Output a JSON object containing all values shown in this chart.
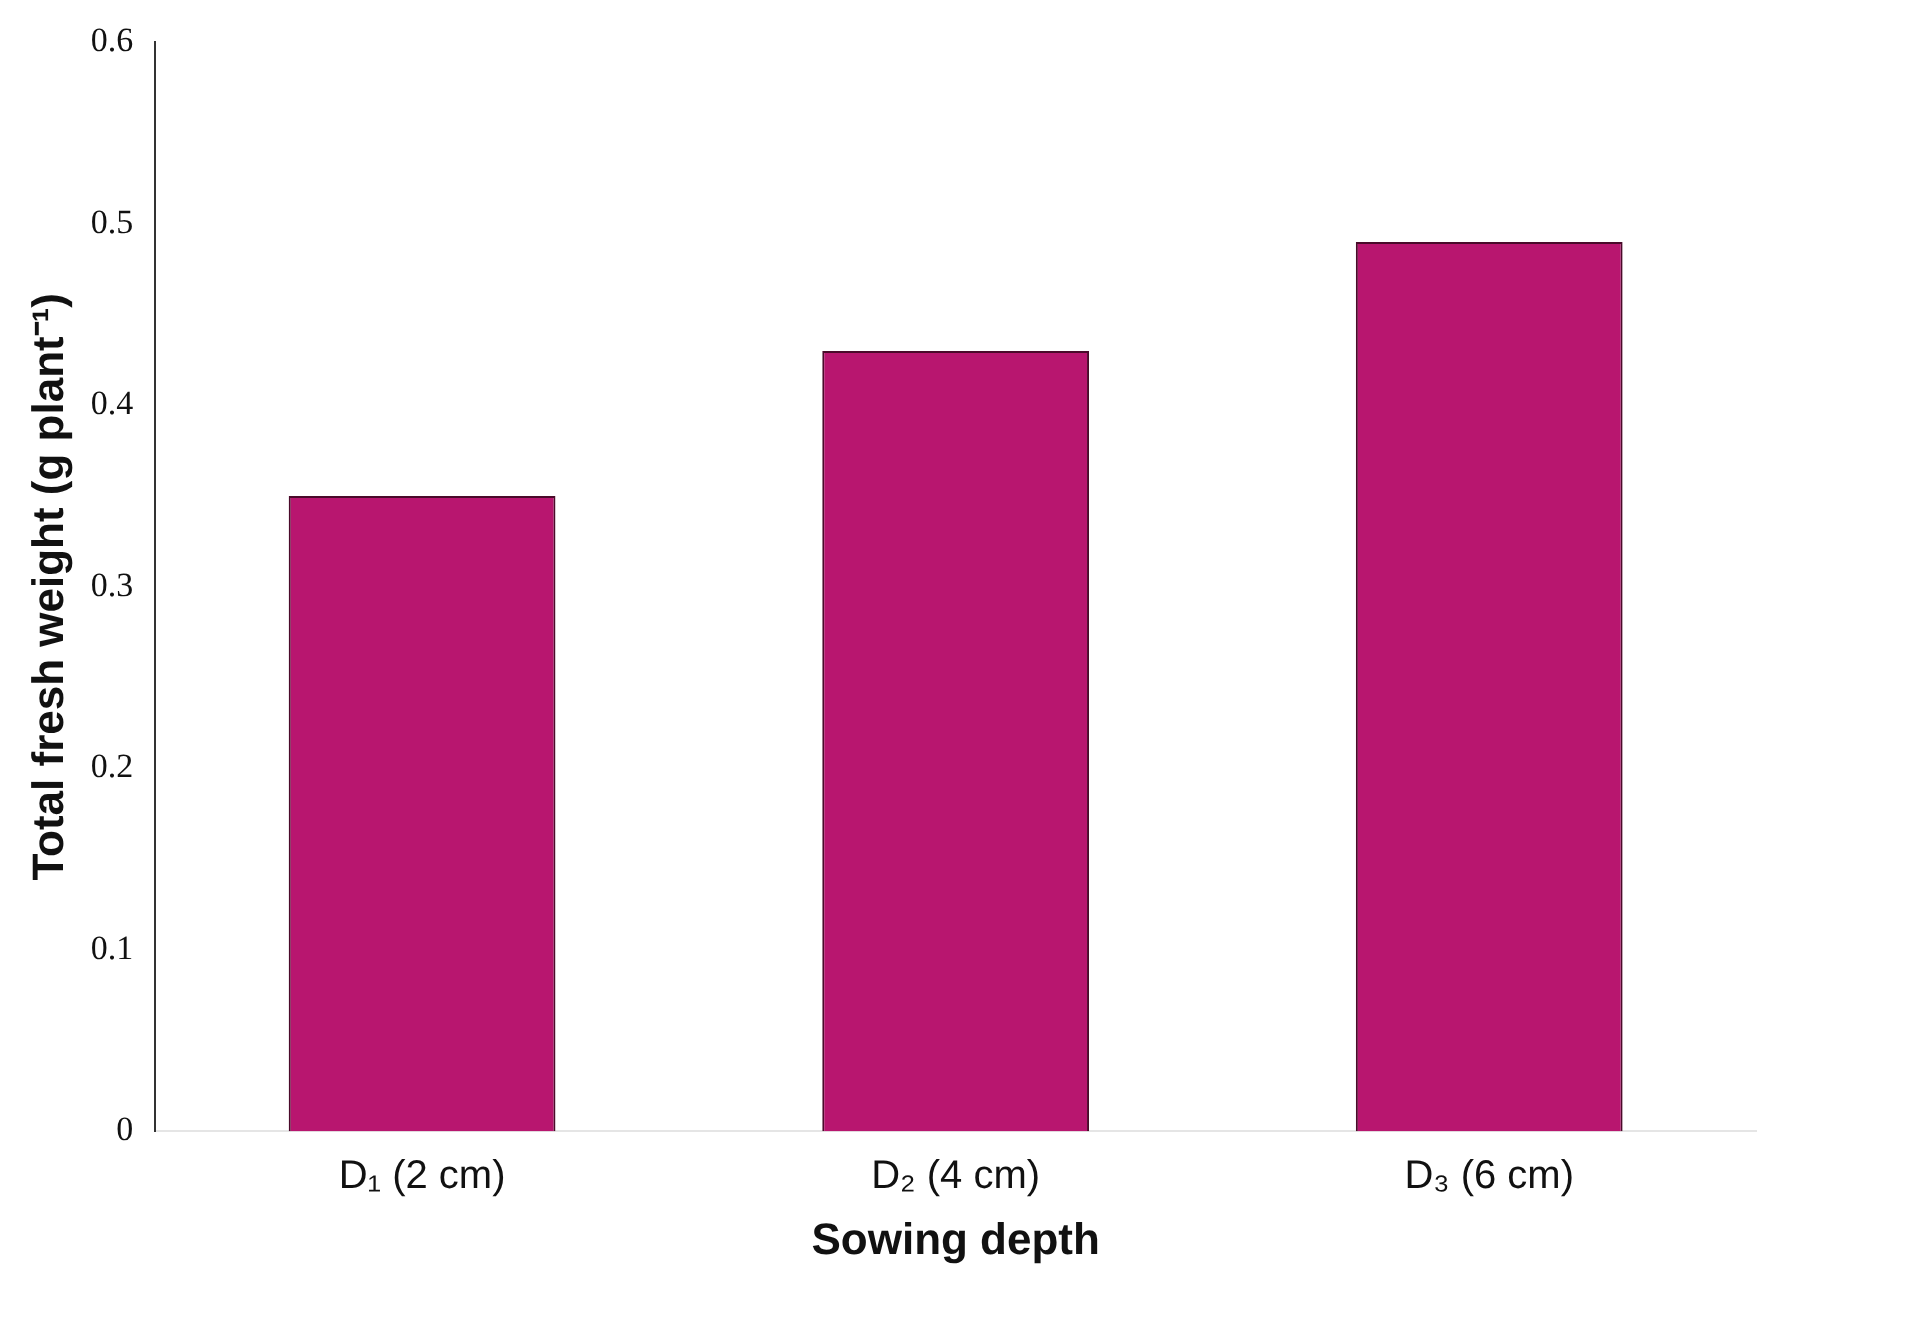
{
  "chart_data": {
    "type": "bar",
    "xlabel": "Sowing depth",
    "ylabel": "Total fresh weight (g plant⁻¹)",
    "categories": [
      "D₁ (2 cm)",
      "D₂ (4 cm)",
      "D₃ (6 cm)"
    ],
    "values": [
      0.35,
      0.43,
      0.49
    ],
    "color": "#b8166f",
    "ylim": [
      0,
      0.6
    ],
    "yticks": [
      0,
      0.1,
      0.2,
      0.3,
      0.4,
      0.5,
      0.6
    ],
    "grid": false
  }
}
